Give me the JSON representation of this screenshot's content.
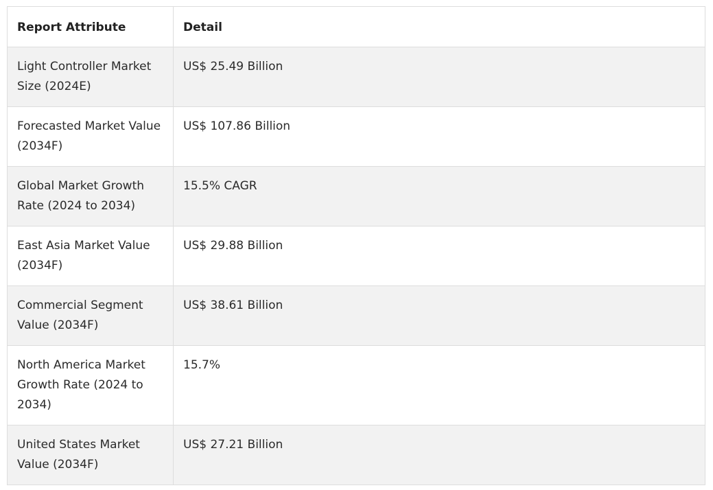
{
  "table": {
    "headers": [
      "Report Attribute",
      "Detail"
    ],
    "rows": [
      {
        "attribute": "Light Controller Market Size (2024E)",
        "detail": "US$ 25.49 Billion"
      },
      {
        "attribute": "Forecasted Market Value (2034F)",
        "detail": "US$ 107.86 Billion"
      },
      {
        "attribute": "Global Market Growth Rate (2024 to 2034)",
        "detail": "15.5% CAGR"
      },
      {
        "attribute": "East Asia Market Value (2034F)",
        "detail": "US$ 29.88 Billion"
      },
      {
        "attribute": "Commercial Segment Value (2034F)",
        "detail": "US$ 38.61 Billion"
      },
      {
        "attribute": "North America Market Growth Rate (2024 to 2034)",
        "detail": "15.7%"
      },
      {
        "attribute": "United States Market Value (2034F)",
        "detail": "US$ 27.21 Billion"
      }
    ]
  },
  "colors": {
    "border": "#dddddd",
    "stripe": "#f2f2f2",
    "text": "#222222"
  }
}
